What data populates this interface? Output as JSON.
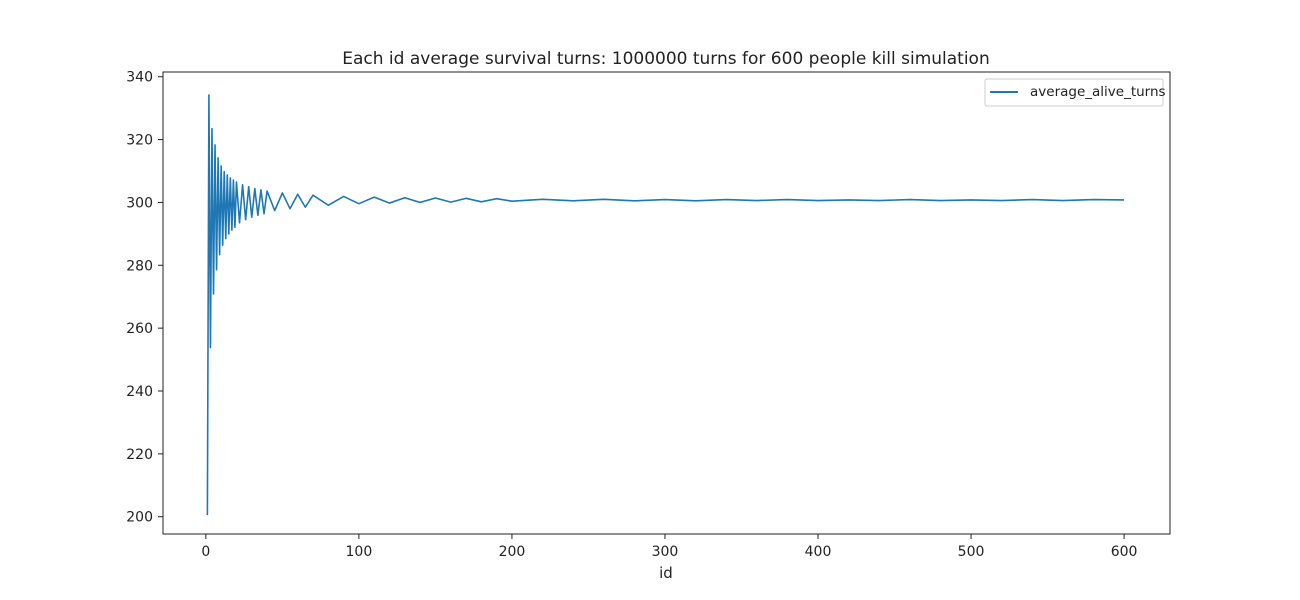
{
  "chart_data": {
    "type": "line",
    "title": "Each id average survival turns: 1000000 turns for 600 people kill simulation",
    "xlabel": "id",
    "ylabel": "",
    "xlim": [
      -28,
      630
    ],
    "ylim": [
      194.5,
      341.5
    ],
    "xticks": [
      0,
      100,
      200,
      300,
      400,
      500,
      600
    ],
    "yticks": [
      200,
      220,
      240,
      260,
      280,
      300,
      320,
      340
    ],
    "grid": false,
    "legend": "top-right",
    "color": "#1f77b4",
    "series": [
      {
        "name": "average_alive_turns",
        "x": [
          1,
          2,
          3,
          4,
          5,
          6,
          7,
          8,
          9,
          10,
          11,
          12,
          13,
          14,
          15,
          16,
          17,
          18,
          19,
          20,
          22,
          24,
          26,
          28,
          30,
          32,
          34,
          36,
          38,
          40,
          45,
          50,
          55,
          60,
          65,
          70,
          80,
          90,
          100,
          110,
          120,
          130,
          140,
          150,
          160,
          170,
          180,
          190,
          200,
          220,
          240,
          260,
          280,
          300,
          320,
          340,
          360,
          380,
          400,
          420,
          440,
          460,
          480,
          500,
          520,
          540,
          560,
          580,
          600
        ],
        "values": [
          200.5,
          334.2,
          253.8,
          323.5,
          270.9,
          318.3,
          278.6,
          314.2,
          283.4,
          311.6,
          286.4,
          309.8,
          288.5,
          308.7,
          290.0,
          307.8,
          291.2,
          307.1,
          292.1,
          306.5,
          293.5,
          305.6,
          294.5,
          305.0,
          295.3,
          304.4,
          295.9,
          304.0,
          296.4,
          303.6,
          297.4,
          303.0,
          298.0,
          302.6,
          298.5,
          302.3,
          299.1,
          301.9,
          299.6,
          301.7,
          299.8,
          301.5,
          300.0,
          301.4,
          300.1,
          301.3,
          300.2,
          301.2,
          300.4,
          301.0,
          300.5,
          301.0,
          300.5,
          300.9,
          300.5,
          300.9,
          300.6,
          300.9,
          300.6,
          300.8,
          300.6,
          300.9,
          300.6,
          300.8,
          300.6,
          300.9,
          300.6,
          300.9,
          300.8
        ]
      }
    ]
  }
}
